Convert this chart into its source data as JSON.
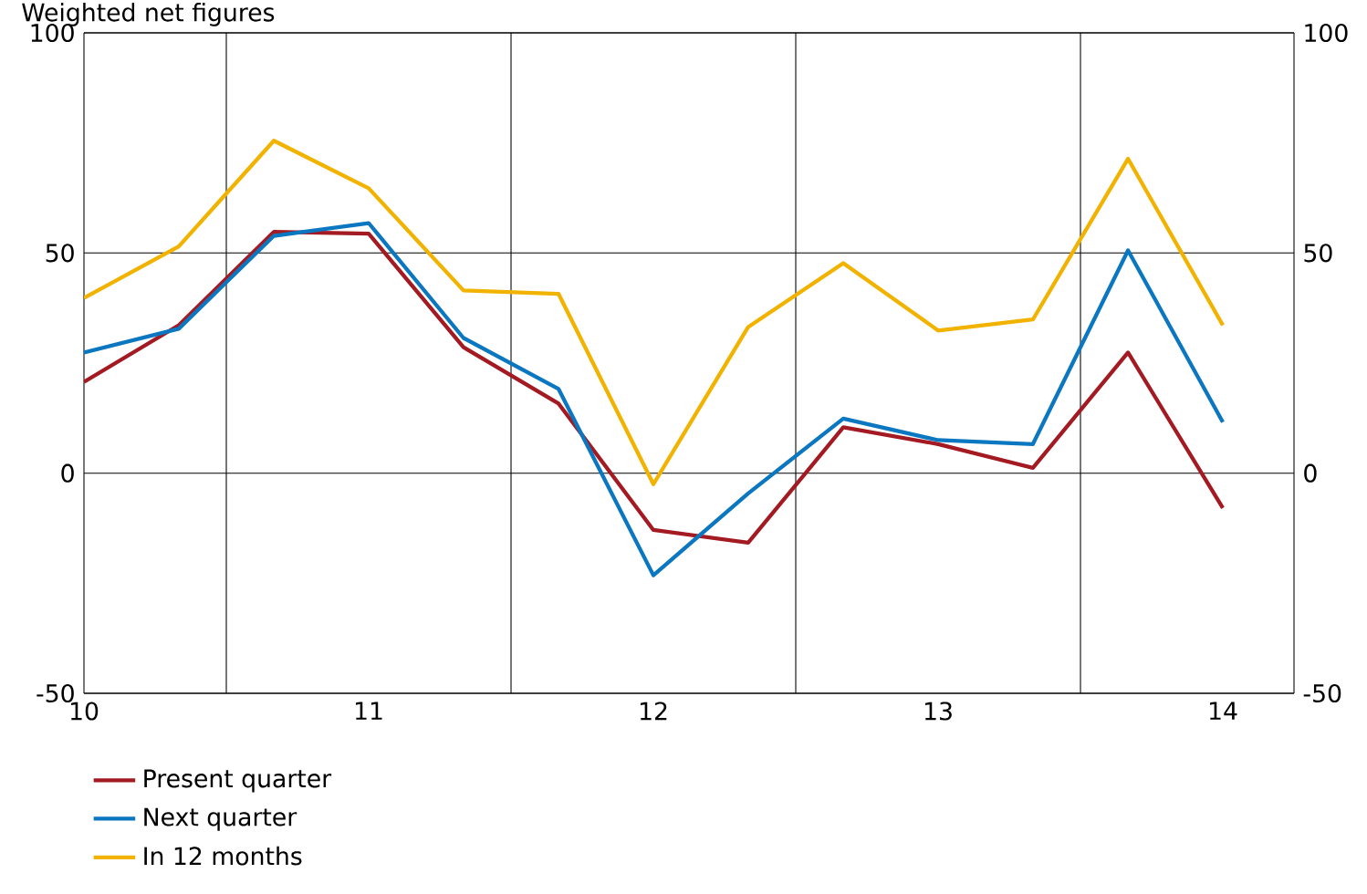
{
  "chart_data": {
    "type": "line",
    "title": "Weighted net figures",
    "x": [
      10,
      10.333,
      10.667,
      11,
      11.333,
      11.667,
      12,
      12.333,
      12.667,
      13,
      13.333,
      13.667,
      14
    ],
    "series": [
      {
        "name": "Present quarter",
        "color": "#a31a22",
        "values": [
          20.7,
          33.6,
          54.8,
          54.4,
          28.6,
          15.8,
          -12.9,
          -15.8,
          10.4,
          6.6,
          1.2,
          27.4,
          -7.9
        ]
      },
      {
        "name": "Next quarter",
        "color": "#0a77c0",
        "values": [
          27.4,
          32.8,
          53.9,
          56.8,
          30.7,
          19.1,
          -23.2,
          -4.6,
          12.4,
          7.5,
          6.6,
          50.6,
          11.6
        ]
      },
      {
        "name": "In 12 months",
        "color": "#f2b200",
        "values": [
          39.8,
          51.5,
          75.5,
          64.7,
          41.5,
          40.7,
          -2.5,
          33.2,
          47.7,
          32.4,
          34.9,
          71.4,
          33.6
        ]
      }
    ],
    "xlim": [
      10,
      14.25
    ],
    "xticks": [
      10,
      {
        "value": 10.5,
        "label": null
      },
      11,
      {
        "value": 11.5,
        "label": null
      },
      12,
      {
        "value": 12.5,
        "label": null
      },
      13,
      {
        "value": 13.5,
        "label": null
      },
      14
    ],
    "ylim": [
      -50,
      100
    ],
    "yticks": [
      -50,
      0,
      50,
      100
    ],
    "y2lim": [
      -50,
      100
    ],
    "y2ticks": [
      -50,
      0,
      50,
      100
    ],
    "grid": true,
    "legend": "bottom left",
    "marker": "none",
    "line_style": "solid"
  }
}
